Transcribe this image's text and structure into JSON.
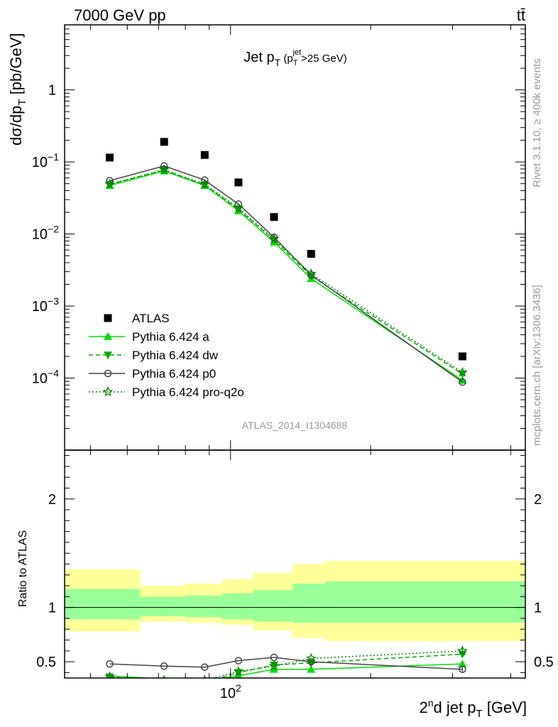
{
  "header": {
    "energy_label": "7000 GeV pp",
    "process_label": "tt̄"
  },
  "side_labels": {
    "rivet": "Rivet 3.1.10, ≥ 400k events",
    "mcplots": "mcplots.cern.ch [arXiv:1306.3436]"
  },
  "analysis_label": "ATLAS_2014_I1304688",
  "chart_data": [
    {
      "type": "scatter",
      "panel": "main",
      "title": "Jet p_T (p_T^jet > 25 GeV)",
      "ylabel": "dσ/dp_T [pb/GeV]",
      "yscale": "log",
      "ylim": [
        1e-05,
        8
      ],
      "xscale": "log",
      "xlim": [
        44,
        430
      ],
      "x": [
        55,
        72,
        88,
        104,
        124,
        149,
        315
      ],
      "series": [
        {
          "name": "ATLAS",
          "color": "#000000",
          "marker": "square",
          "values": [
            0.115,
            0.19,
            0.125,
            0.052,
            0.0172,
            0.0053,
            0.0002
          ]
        },
        {
          "name": "Pythia 6.424 a",
          "color": "#00dd00",
          "marker": "triangle-up",
          "line": "solid",
          "values": [
            0.047,
            0.075,
            0.047,
            0.021,
            0.0077,
            0.0024,
            9.3e-05
          ]
        },
        {
          "name": "Pythia 6.424 dw",
          "color": "#00aa00",
          "marker": "triangle-down",
          "line": "dashed",
          "values": [
            0.049,
            0.077,
            0.048,
            0.022,
            0.0082,
            0.0026,
            0.000114
          ]
        },
        {
          "name": "Pythia 6.424 p0",
          "color": "#444444",
          "marker": "circle-open",
          "line": "solid",
          "values": [
            0.055,
            0.088,
            0.056,
            0.026,
            0.009,
            0.0027,
            8.8e-05
          ]
        },
        {
          "name": "Pythia 6.424 pro-q2o",
          "color": "#008800",
          "marker": "star-open",
          "line": "dotted",
          "values": [
            0.049,
            0.078,
            0.049,
            0.023,
            0.0085,
            0.0028,
            0.00012
          ]
        }
      ],
      "legend_position": "bottom-left"
    },
    {
      "type": "line",
      "panel": "ratio",
      "ylabel": "Ratio to ATLAS",
      "xlabel": "2nd jet p_T [GeV]",
      "xscale": "log",
      "xlim": [
        44,
        430
      ],
      "ylim": [
        0.35,
        2.45
      ],
      "yticks": [
        0.5,
        1,
        2
      ],
      "xticks": [
        100
      ],
      "band_edges": [
        44,
        64,
        80,
        96,
        112,
        136,
        160,
        430
      ],
      "band_yellow": [
        [
          0.78,
          1.35
        ],
        [
          0.87,
          1.2
        ],
        [
          0.86,
          1.22
        ],
        [
          0.84,
          1.26
        ],
        [
          0.79,
          1.32
        ],
        [
          0.72,
          1.4
        ],
        [
          0.69,
          1.43
        ]
      ],
      "band_green": [
        [
          0.89,
          1.17
        ],
        [
          0.92,
          1.1
        ],
        [
          0.91,
          1.11
        ],
        [
          0.89,
          1.13
        ],
        [
          0.87,
          1.16
        ],
        [
          0.86,
          1.22
        ],
        [
          0.86,
          1.24
        ]
      ],
      "series": [
        {
          "name": "Pythia 6.424 a",
          "color": "#00dd00",
          "marker": "triangle-up",
          "line": "solid",
          "values": [
            0.37,
            0.34,
            0.32,
            0.37,
            0.43,
            0.43,
            0.48
          ]
        },
        {
          "name": "Pythia 6.424 dw",
          "color": "#00aa00",
          "marker": "triangle-down",
          "line": "dashed",
          "values": [
            0.36,
            0.32,
            0.31,
            0.4,
            0.47,
            0.49,
            0.57
          ]
        },
        {
          "name": "Pythia 6.424 p0",
          "color": "#444444",
          "marker": "circle-open",
          "line": "solid",
          "values": [
            0.48,
            0.46,
            0.45,
            0.51,
            0.54,
            0.5,
            0.43
          ]
        },
        {
          "name": "Pythia 6.424 pro-q2o",
          "color": "#008800",
          "marker": "star-open",
          "line": "dotted",
          "values": [
            0.36,
            0.32,
            0.33,
            0.41,
            0.46,
            0.53,
            0.6
          ]
        }
      ]
    }
  ]
}
